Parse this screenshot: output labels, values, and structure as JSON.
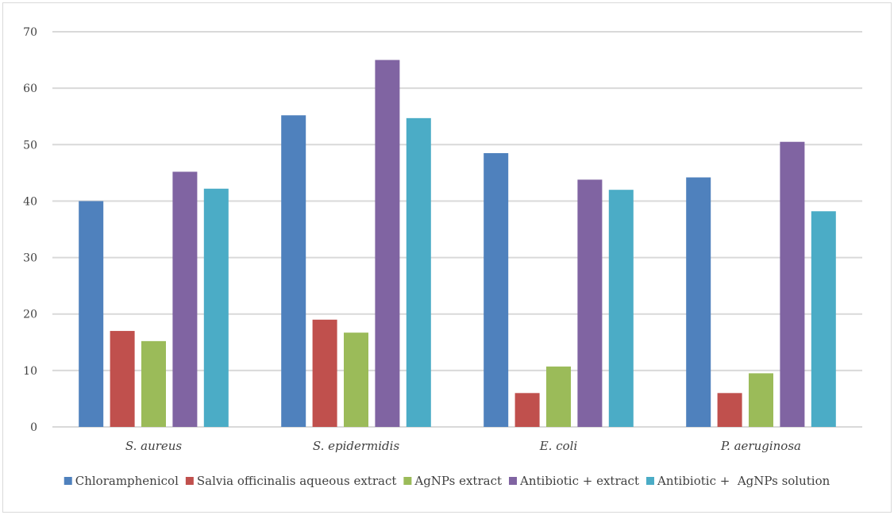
{
  "chart_data": {
    "type": "bar",
    "title": "",
    "xlabel": "",
    "ylabel": "",
    "ylim": [
      0,
      70
    ],
    "yticks": [
      0,
      10,
      20,
      30,
      40,
      50,
      60,
      70
    ],
    "grid": true,
    "legend_position": "bottom",
    "categories": [
      "S. aureus",
      "S. epidermidis",
      "E. coli",
      "P. aeruginosa"
    ],
    "series": [
      {
        "name": "Chloramphenicol",
        "color": "#4f81bd",
        "values": [
          40,
          55.2,
          48.5,
          44.2
        ]
      },
      {
        "name": "Salvia officinalis aqueous extract",
        "color": "#c0504d",
        "values": [
          17,
          19,
          6,
          6
        ]
      },
      {
        "name": "AgNPs extract",
        "color": "#9bbb59",
        "values": [
          15.2,
          16.7,
          10.7,
          9.5
        ]
      },
      {
        "name": "Antibiotic + extract",
        "color": "#8064a2",
        "values": [
          45.2,
          65,
          43.8,
          50.5
        ]
      },
      {
        "name": "Antibiotic +  AgNPs solution",
        "color": "#4bacc6",
        "values": [
          42.2,
          54.7,
          42,
          38.2
        ]
      }
    ]
  }
}
